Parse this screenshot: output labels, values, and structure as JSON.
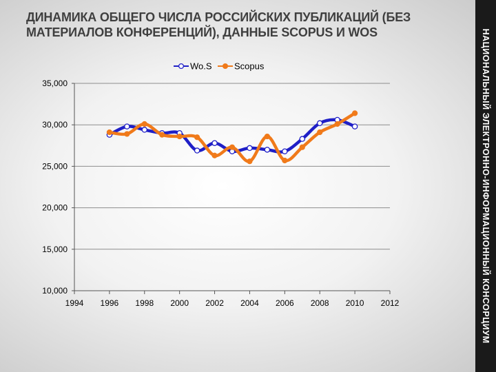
{
  "page": {
    "title_line1": "ДИНАМИКА ОБЩЕГО ЧИСЛА РОССИЙСКИХ ПУБЛИКАЦИЙ (БЕЗ",
    "title_line2": "МАТЕРИАЛОВ КОНФЕРЕНЦИЙ), ДАННЫЕ  SCOPUS И WOS",
    "side_label": "НАЦИОНАЛЬНЫЙ ЭЛЕКТРОННО-ИНФОРМАЦИОННЫЙ КОНСОРЦИУМ"
  },
  "chart_data": {
    "type": "line",
    "title": "",
    "xlabel": "",
    "ylabel": "",
    "xlim": [
      1994,
      2012
    ],
    "ylim": [
      10000,
      35000
    ],
    "x_ticks": [
      "1994",
      "1996",
      "1998",
      "2000",
      "2002",
      "2004",
      "2006",
      "2008",
      "2010",
      "2012"
    ],
    "y_ticks": [
      "10,000",
      "15,000",
      "20,000",
      "25,000",
      "30,000",
      "35,000"
    ],
    "x_tick_values": [
      1994,
      1996,
      1998,
      2000,
      2002,
      2004,
      2006,
      2008,
      2010,
      2012
    ],
    "y_tick_values": [
      10000,
      15000,
      20000,
      25000,
      30000,
      35000
    ],
    "grid": "horizontal",
    "legend_position": "top-center",
    "series": [
      {
        "name": "Wo.S",
        "color": "#1f1fc7",
        "marker": "circle-open",
        "x": [
          1996,
          1997,
          1998,
          1999,
          2000,
          2001,
          2002,
          2003,
          2004,
          2005,
          2006,
          2007,
          2008,
          2009,
          2010
        ],
        "values": [
          28800,
          29800,
          29400,
          29000,
          29000,
          26900,
          27800,
          26800,
          27200,
          27000,
          26800,
          28300,
          30200,
          30600,
          29800
        ]
      },
      {
        "name": "Scopus",
        "color": "#f07a1a",
        "marker": "circle-filled",
        "x": [
          1996,
          1997,
          1998,
          1999,
          2000,
          2001,
          2002,
          2003,
          2004,
          2005,
          2006,
          2007,
          2008,
          2009,
          2010
        ],
        "values": [
          29100,
          28900,
          30100,
          28800,
          28600,
          28500,
          26300,
          27300,
          25600,
          28600,
          25700,
          27300,
          29100,
          30100,
          31400
        ]
      }
    ]
  }
}
